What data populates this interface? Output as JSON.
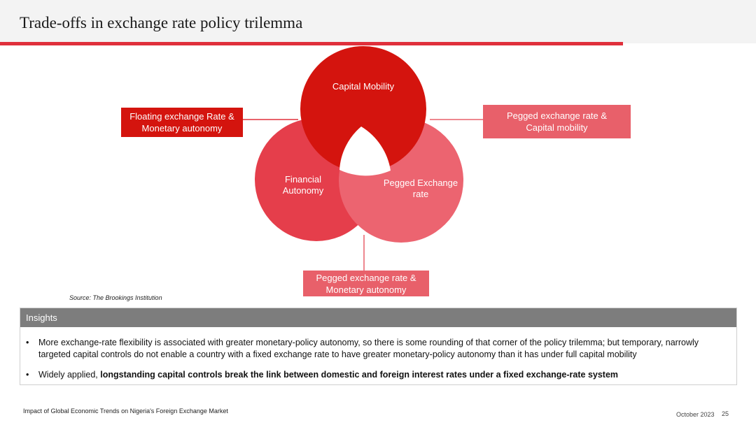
{
  "header": {
    "title": "Trade-offs in exchange rate policy trilemma"
  },
  "diagram": {
    "circles": {
      "capital_mobility": {
        "label_lines": [
          "Capital Mobility"
        ],
        "color": "#d4140e"
      },
      "financial_autonomy": {
        "label_lines": [
          "Financial",
          "Autonomy"
        ],
        "color": "#e53e4b"
      },
      "pegged_exchange_rate": {
        "label_lines": [
          "Pegged Exchange",
          "rate"
        ],
        "color": "#ec6470"
      }
    },
    "callouts": {
      "left": {
        "line1": "Floating exchange Rate &",
        "line2": "Monetary autonomy"
      },
      "right": {
        "line1": "Pegged exchange rate &",
        "line2": "Capital mobility"
      },
      "bottom": {
        "line1": "Pegged exchange rate &",
        "line2": "Monetary autonomy"
      }
    },
    "source": "Source: The Brookings Institution"
  },
  "insights": {
    "heading": "Insights",
    "bullet_symbol": "•",
    "bullet1": "More exchange-rate flexibility is associated with greater monetary-policy autonomy, so there is some rounding of that corner of the policy trilemma; but temporary, narrowly targeted capital controls do not enable a country with a fixed exchange rate to have greater monetary-policy autonomy than it has under full capital mobility",
    "bullet2_prefix": "Widely applied, ",
    "bullet2_bold": "longstanding capital controls break the link between domestic and foreign interest rates under a fixed exchange-rate system"
  },
  "footer": {
    "report_title": "Impact of Global Economic Trends on Nigeria's Foreign Exchange Market",
    "date": "October 2023",
    "page_number": "25"
  }
}
